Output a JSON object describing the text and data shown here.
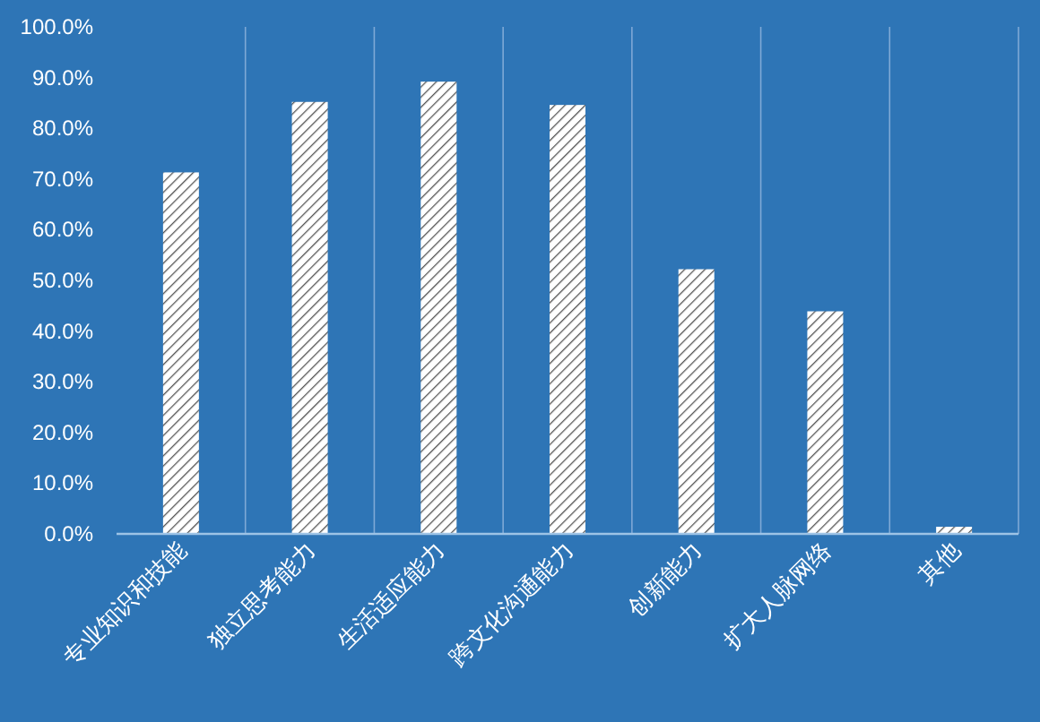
{
  "chart_data": {
    "type": "bar",
    "categories": [
      "专业知识和技能",
      "独立思考能力",
      "生活适应能力",
      "跨文化沟通能力",
      "创新能力",
      "扩大人脉网络",
      "其他"
    ],
    "values": [
      71.3,
      85.2,
      89.2,
      84.6,
      52.2,
      43.9,
      1.4
    ],
    "color": "#ffffff",
    "ylim": [
      0,
      100
    ],
    "yticks": [
      {
        "value": 0,
        "label": "0.0%"
      },
      {
        "value": 10,
        "label": "10.0%"
      },
      {
        "value": 20,
        "label": "20.0%"
      },
      {
        "value": 30,
        "label": "30.0%"
      },
      {
        "value": 40,
        "label": "40.0%"
      },
      {
        "value": 50,
        "label": "50.0%"
      },
      {
        "value": 60,
        "label": "60.0%"
      },
      {
        "value": 70,
        "label": "70.0%"
      },
      {
        "value": 80,
        "label": "80.0%"
      },
      {
        "value": 90,
        "label": "90.0%"
      },
      {
        "value": 100,
        "label": "100.0%"
      }
    ],
    "grid": "x"
  }
}
